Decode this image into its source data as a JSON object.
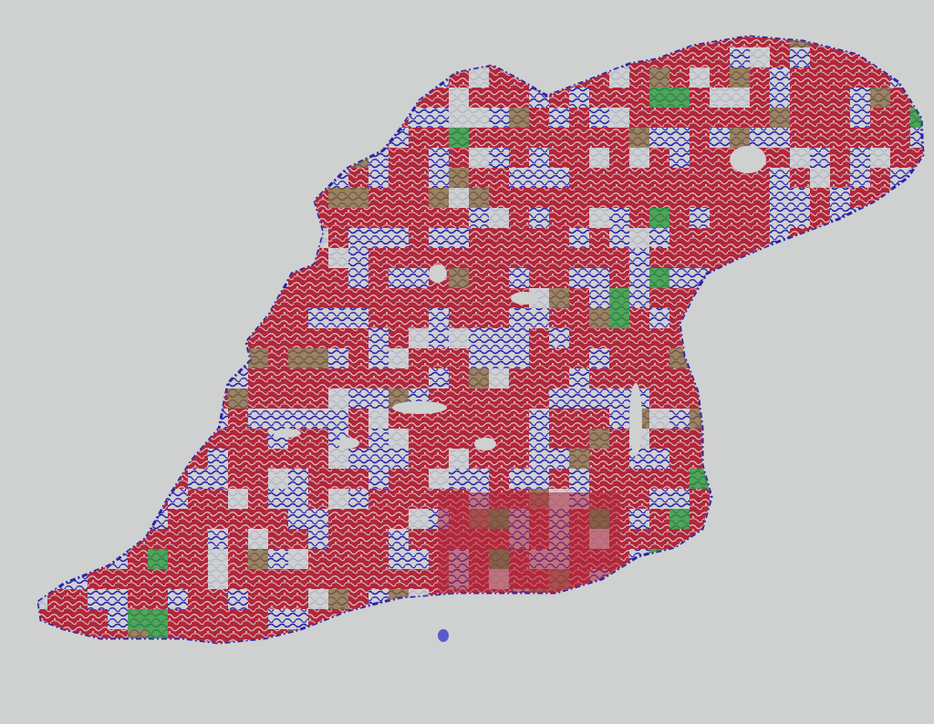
{
  "slide": {
    "background_color": "#cfd1d0",
    "tissue_classes": [
      {
        "color": "#b3263a"
      },
      {
        "color": "#2b23a8"
      },
      {
        "color": "#8a6a3a"
      },
      {
        "color": "#2f9a38"
      }
    ],
    "dominant_class_color": "#b3263a",
    "marker_dot_color": "#5a5ad0"
  }
}
